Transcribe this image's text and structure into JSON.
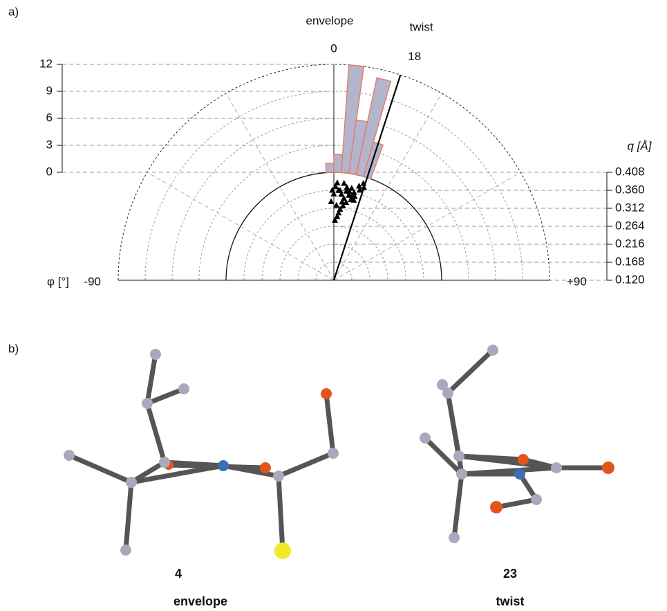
{
  "chart_data": {
    "type": "polar_histogram",
    "panel_label": "a)",
    "phi_markers": [
      {
        "value": 0,
        "name": "envelope"
      },
      {
        "value": 18,
        "name": "twist"
      }
    ],
    "xlabel": "φ [°]",
    "xlim": [
      -90,
      90
    ],
    "xticks": [
      -90,
      {
        "value": 90,
        "label": "+90"
      }
    ],
    "phi_grid": [
      -60,
      -30,
      30,
      60
    ],
    "ylabel": "q  [Å]",
    "ylim": [
      0.12,
      0.408
    ],
    "yticks": [
      {
        "value": 0.12,
        "label": "0.120"
      },
      {
        "value": 0.168,
        "label": "0.168"
      },
      {
        "value": 0.216,
        "label": "0.216"
      },
      {
        "value": 0.264,
        "label": "0.264"
      },
      {
        "value": 0.312,
        "label": "0.312"
      },
      {
        "value": 0.36,
        "label": "0.360"
      },
      {
        "value": 0.408,
        "label": "0.408"
      }
    ],
    "count_lim": [
      0,
      12
    ],
    "count_ticks": [
      0,
      3,
      6,
      9,
      12
    ],
    "bins": [
      -4,
      0,
      4,
      8,
      12,
      16,
      20
    ],
    "counts": [
      1,
      2,
      12,
      6,
      11,
      4
    ],
    "bar_color": "#b4b4cc",
    "bar_edge": "#e0806a",
    "points": {
      "x": [
        -2,
        0,
        1,
        2,
        3,
        4,
        5,
        6,
        7,
        8,
        9,
        10,
        11,
        12,
        13,
        14,
        15,
        16,
        17,
        18,
        -1,
        3,
        5,
        8,
        10,
        12,
        14,
        6,
        4,
        2,
        1,
        7
      ],
      "y": [
        0.33,
        0.35,
        0.37,
        0.32,
        0.36,
        0.3,
        0.35,
        0.38,
        0.34,
        0.36,
        0.33,
        0.35,
        0.37,
        0.34,
        0.36,
        0.35,
        0.38,
        0.37,
        0.39,
        0.38,
        0.36,
        0.29,
        0.31,
        0.37,
        0.36,
        0.35,
        0.34,
        0.33,
        0.36,
        0.38,
        0.28,
        0.32
      ],
      "color": "#000000"
    }
  },
  "panel_b": {
    "panel_label": "b)",
    "molecules": [
      {
        "number": "4",
        "conformation": "envelope"
      },
      {
        "number": "23",
        "conformation": "twist"
      }
    ]
  }
}
